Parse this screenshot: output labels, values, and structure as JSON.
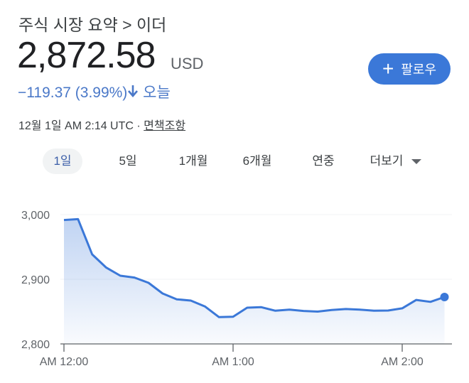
{
  "header": {
    "breadcrumb": "주식 시장 요약 > 이더",
    "price": "2,872.58",
    "currency": "USD",
    "change": "−119.37 (3.99%)",
    "change_direction_icon": "arrow-down-icon",
    "change_period": "오늘",
    "timestamp": "12월 1일 AM 2:14 UTC · ",
    "disclaimer_link": "면책조항",
    "follow_button": "팔로우",
    "follow_icon": "plus-icon"
  },
  "tabs": [
    {
      "label": "1일",
      "active": true
    },
    {
      "label": "5일",
      "active": false
    },
    {
      "label": "1개월",
      "active": false
    },
    {
      "label": "6개월",
      "active": false
    },
    {
      "label": "연중",
      "active": false
    },
    {
      "label": "더보기",
      "active": false,
      "dropdown": true
    }
  ],
  "colors": {
    "line": "#3b78d8",
    "accent": "#3b78d8",
    "negative": "#4a78c8"
  },
  "chart_data": {
    "type": "area",
    "x_tick_labels": [
      "AM 12:00",
      "AM 1:00",
      "AM 2:00"
    ],
    "y_tick_labels": [
      "3,000",
      "2,900",
      "2,800"
    ],
    "y_ticks": [
      3000,
      2900,
      2800
    ],
    "ylim": [
      2800,
      3000
    ],
    "x_unit": "minutes after AM 12:00",
    "x_ticks": [
      0,
      60,
      120
    ],
    "grid": true,
    "x": [
      0,
      5,
      10,
      15,
      20,
      25,
      30,
      35,
      40,
      45,
      50,
      55,
      60,
      65,
      70,
      75,
      80,
      85,
      90,
      95,
      100,
      105,
      110,
      115,
      120,
      125,
      130,
      135
    ],
    "values": [
      2991.6,
      2993,
      2938.5,
      2918,
      2905.5,
      2902.6,
      2894.5,
      2878,
      2869,
      2867,
      2858,
      2841.4,
      2842,
      2856,
      2856.8,
      2851.3,
      2853,
      2851,
      2850,
      2852.4,
      2854,
      2853,
      2851.3,
      2851.6,
      2855,
      2868,
      2865,
      2872.58
    ]
  }
}
